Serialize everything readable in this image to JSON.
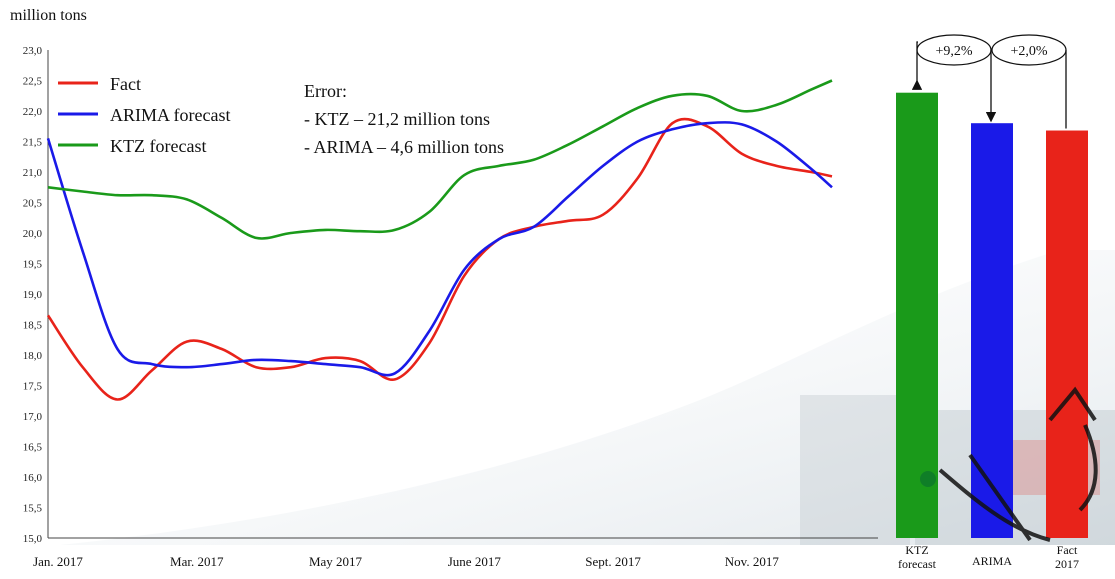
{
  "chart_data": [
    {
      "type": "line",
      "ylabel": "million tons",
      "ylim": [
        15.0,
        23.0
      ],
      "yticks": [
        "15,0",
        "15,5",
        "16,0",
        "16,5",
        "17,0",
        "17,5",
        "18,0",
        "18,5",
        "19,0",
        "19,5",
        "20,0",
        "20,5",
        "21,0",
        "21,5",
        "22,0",
        "22,5",
        "23,0"
      ],
      "xticks": [
        {
          "label": "Jan. 2017",
          "x": 1
        },
        {
          "label": "Mar. 2017",
          "x": 3
        },
        {
          "label": "May 2017",
          "x": 5
        },
        {
          "label": "June 2017",
          "x": 7
        },
        {
          "label": "Sept. 2017",
          "x": 9
        },
        {
          "label": "Nov. 2017",
          "x": 11
        }
      ],
      "xlim": [
        1,
        12.3
      ],
      "grid": false,
      "legend_placement": "top-left",
      "series": [
        {
          "name": "Fact",
          "color": "#e8231a",
          "x": [
            1.0,
            1.5,
            2.0,
            2.5,
            3.0,
            3.5,
            4.0,
            4.5,
            5.0,
            5.5,
            6.0,
            6.5,
            7.0,
            7.5,
            8.0,
            8.5,
            9.0,
            9.5,
            10.0,
            10.5,
            11.0,
            11.5,
            12.0,
            12.3
          ],
          "values": [
            18.65,
            17.8,
            17.27,
            17.75,
            18.22,
            18.1,
            17.8,
            17.8,
            17.95,
            17.9,
            17.6,
            18.2,
            19.3,
            19.9,
            20.1,
            20.2,
            20.3,
            20.9,
            21.8,
            21.75,
            21.3,
            21.1,
            21.0,
            20.93
          ]
        },
        {
          "name": "ARIMA  forecast",
          "color": "#1a1ae8",
          "x": [
            1.0,
            1.5,
            2.0,
            2.5,
            3.0,
            3.5,
            4.0,
            4.5,
            5.0,
            5.5,
            6.0,
            6.5,
            7.0,
            7.5,
            8.0,
            8.5,
            9.0,
            9.5,
            10.0,
            10.5,
            11.0,
            11.5,
            12.0,
            12.3
          ],
          "values": [
            21.55,
            19.7,
            18.1,
            17.85,
            17.8,
            17.85,
            17.92,
            17.9,
            17.85,
            17.8,
            17.7,
            18.4,
            19.4,
            19.9,
            20.1,
            20.6,
            21.1,
            21.5,
            21.7,
            21.8,
            21.78,
            21.5,
            21.05,
            20.75
          ]
        },
        {
          "name": "KTZ forecast",
          "color": "#1a9a1a",
          "x": [
            1.0,
            1.5,
            2.0,
            2.5,
            3.0,
            3.5,
            4.0,
            4.5,
            5.0,
            5.5,
            6.0,
            6.5,
            7.0,
            7.5,
            8.0,
            8.5,
            9.0,
            9.5,
            10.0,
            10.5,
            11.0,
            11.5,
            12.0,
            12.3
          ],
          "values": [
            20.75,
            20.68,
            20.62,
            20.62,
            20.55,
            20.25,
            19.92,
            20.0,
            20.05,
            20.03,
            20.05,
            20.35,
            20.95,
            21.1,
            21.2,
            21.45,
            21.75,
            22.05,
            22.25,
            22.25,
            22.0,
            22.1,
            22.35,
            22.5
          ]
        }
      ],
      "annotations": [
        "Error:",
        "- KTZ – 21,2 million tons",
        "- ARIMA – 4,6 million tons"
      ]
    },
    {
      "type": "bar",
      "categories": [
        "KTZ forecast",
        "ARIMA",
        "Fact 2017"
      ],
      "values": [
        22.3,
        21.8,
        21.68
      ],
      "colors": [
        "#1a9a1a",
        "#1a1ae8",
        "#e8231a"
      ],
      "comparisons": [
        "+9,2%",
        "+2,0%"
      ]
    }
  ]
}
